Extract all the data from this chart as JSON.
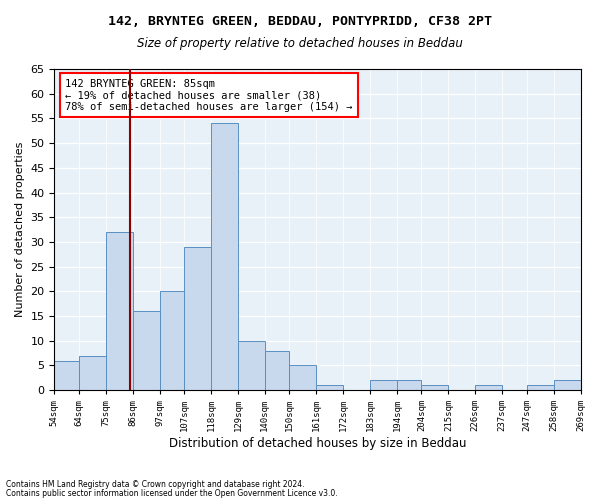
{
  "title": "142, BRYNTEG GREEN, BEDDAU, PONTYPRIDD, CF38 2PT",
  "subtitle": "Size of property relative to detached houses in Beddau",
  "xlabel": "Distribution of detached houses by size in Beddau",
  "ylabel": "Number of detached properties",
  "bar_edges": [
    54,
    64,
    75,
    86,
    97,
    107,
    118,
    129,
    140,
    150,
    161,
    172,
    183,
    194,
    204,
    215,
    226,
    237,
    247,
    258,
    269
  ],
  "bar_heights": [
    6,
    7,
    32,
    16,
    20,
    29,
    54,
    10,
    8,
    5,
    1,
    0,
    2,
    2,
    1,
    0,
    1,
    0,
    1,
    2
  ],
  "bar_color": "#c8d9ed",
  "bar_edge_color": "#5a8fc3",
  "vline_x": 85,
  "vline_color": "#8b0000",
  "annotation_text": "142 BRYNTEG GREEN: 85sqm\n← 19% of detached houses are smaller (38)\n78% of semi-detached houses are larger (154) →",
  "annotation_box_color": "white",
  "annotation_box_edge_color": "red",
  "ylim": [
    0,
    65
  ],
  "yticks": [
    0,
    5,
    10,
    15,
    20,
    25,
    30,
    35,
    40,
    45,
    50,
    55,
    60,
    65
  ],
  "tick_labels": [
    "54sqm",
    "64sqm",
    "75sqm",
    "86sqm",
    "97sqm",
    "107sqm",
    "118sqm",
    "129sqm",
    "140sqm",
    "150sqm",
    "161sqm",
    "172sqm",
    "183sqm",
    "194sqm",
    "204sqm",
    "215sqm",
    "226sqm",
    "237sqm",
    "247sqm",
    "258sqm",
    "269sqm"
  ],
  "background_color": "#e8f0f8",
  "grid_color": "#ffffff",
  "footer_line1": "Contains HM Land Registry data © Crown copyright and database right 2024.",
  "footer_line2": "Contains public sector information licensed under the Open Government Licence v3.0."
}
